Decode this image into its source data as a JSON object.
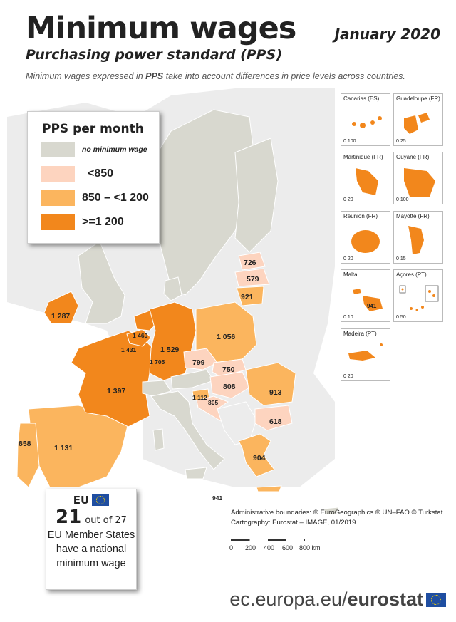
{
  "header": {
    "title": "Minimum wages",
    "date": "January 2020",
    "subtitle": "Purchasing power standard (PPS)",
    "description_pre": "Minimum wages expressed in ",
    "description_bold": "PPS",
    "description_post": " take into account differences in price levels across countries."
  },
  "legend": {
    "title": "PPS per month",
    "items": [
      {
        "label": "no minimum wage",
        "color": "#d8d8cf"
      },
      {
        "label": "<850",
        "color": "#fdd4bf"
      },
      {
        "label": "850 – <1 200",
        "color": "#fbb55e"
      },
      {
        "label": ">=1 200",
        "color": "#f2871c"
      }
    ]
  },
  "values": {
    "ireland": "1 287",
    "netherlands": "1 460",
    "belgium": "1 431",
    "luxembourg": "1 705",
    "germany": "1 529",
    "france": "1 397",
    "spain": "1 131",
    "portugal": "858",
    "poland": "1 056",
    "czechia": "799",
    "slovakia": "750",
    "hungary": "808",
    "slovenia": "1 112",
    "croatia": "805",
    "romania": "913",
    "bulgaria": "618",
    "greece": "904",
    "estonia": "726",
    "latvia": "579",
    "lithuania": "921",
    "malta": "941"
  },
  "insets": [
    {
      "name": "Canarias (ES)",
      "scale": "0   100"
    },
    {
      "name": "Guadeloupe (FR)",
      "scale": "0   25"
    },
    {
      "name": "Martinique (FR)",
      "scale": "0   20"
    },
    {
      "name": "Guyane (FR)",
      "scale": "0        100"
    },
    {
      "name": "Réunion (FR)",
      "scale": "0   20"
    },
    {
      "name": "Mayotte (FR)",
      "scale": "0       15"
    },
    {
      "name": "Malta",
      "scale": "0   10",
      "value": "941"
    },
    {
      "name": "Açores (PT)",
      "scale": "0      50"
    },
    {
      "name": "Madeira (PT)",
      "scale": "0   20"
    }
  ],
  "eu_box": {
    "eu_label": "EU",
    "count": "21",
    "count_suffix": "out of 27",
    "line1": "EU Member States",
    "line2": "have a national",
    "line3": "minimum wage"
  },
  "credits": {
    "line1": "Administrative boundaries: © EuroGeographics © UN–FAO © Turkstat",
    "line2": "Cartography: Eurostat – IMAGE, 01/2019"
  },
  "scale_bar": {
    "t0": "0",
    "t1": "200",
    "t2": "400",
    "t3": "600",
    "t4": "800 km"
  },
  "footer": {
    "prefix": "ec.europa.eu/",
    "brand": "eurostat"
  }
}
